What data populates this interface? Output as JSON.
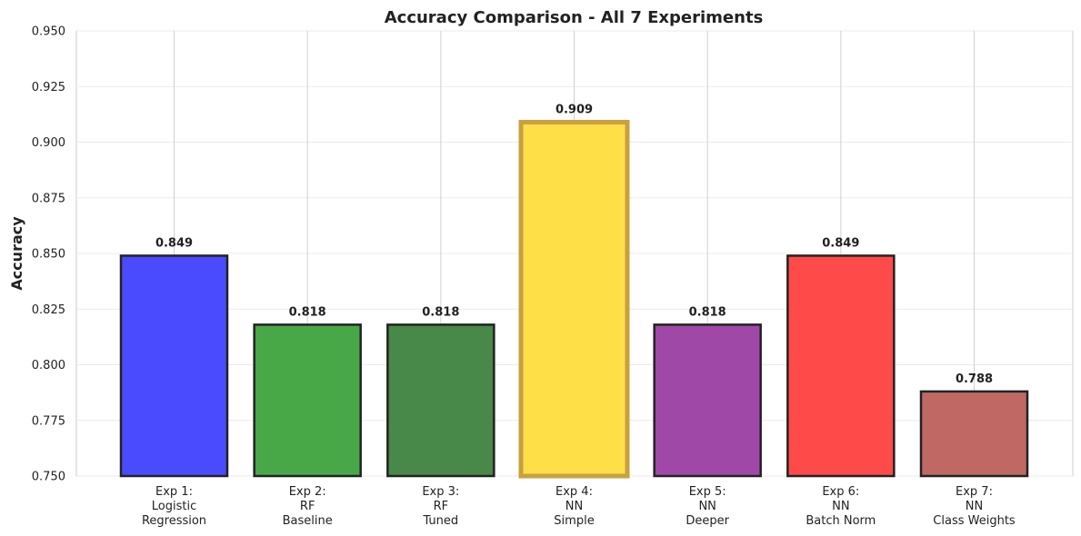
{
  "chart_data": {
    "type": "bar",
    "title": "Accuracy Comparison - All 7 Experiments",
    "ylabel": "Accuracy",
    "xlabel": "",
    "ylim": [
      0.75,
      0.95
    ],
    "yticks": [
      "0.750",
      "0.775",
      "0.800",
      "0.825",
      "0.850",
      "0.875",
      "0.900",
      "0.925",
      "0.950"
    ],
    "grid": true,
    "categories": [
      [
        "Exp 1:",
        "Logistic",
        "Regression"
      ],
      [
        "Exp 2:",
        "RF",
        "Baseline"
      ],
      [
        "Exp 3:",
        "RF",
        "Tuned"
      ],
      [
        "Exp 4:",
        "NN",
        "Simple"
      ],
      [
        "Exp 5:",
        "NN",
        "Deeper"
      ],
      [
        "Exp 6:",
        "NN",
        "Batch Norm"
      ],
      [
        "Exp 7:",
        "NN",
        "Class Weights"
      ]
    ],
    "values": [
      0.849,
      0.818,
      0.818,
      0.909,
      0.818,
      0.849,
      0.788
    ],
    "data_labels": [
      "0.849",
      "0.818",
      "0.818",
      "0.909",
      "0.818",
      "0.849",
      "0.788"
    ],
    "colors": [
      "#4a4aff",
      "#48a848",
      "#488848",
      "#ffdf48",
      "#a048a8",
      "#ff4a4a",
      "#bf6864"
    ],
    "edge_colors": [
      "#222222",
      "#222222",
      "#222222",
      "#c8a040",
      "#222222",
      "#222222",
      "#222222"
    ],
    "highlight_index": 3
  }
}
